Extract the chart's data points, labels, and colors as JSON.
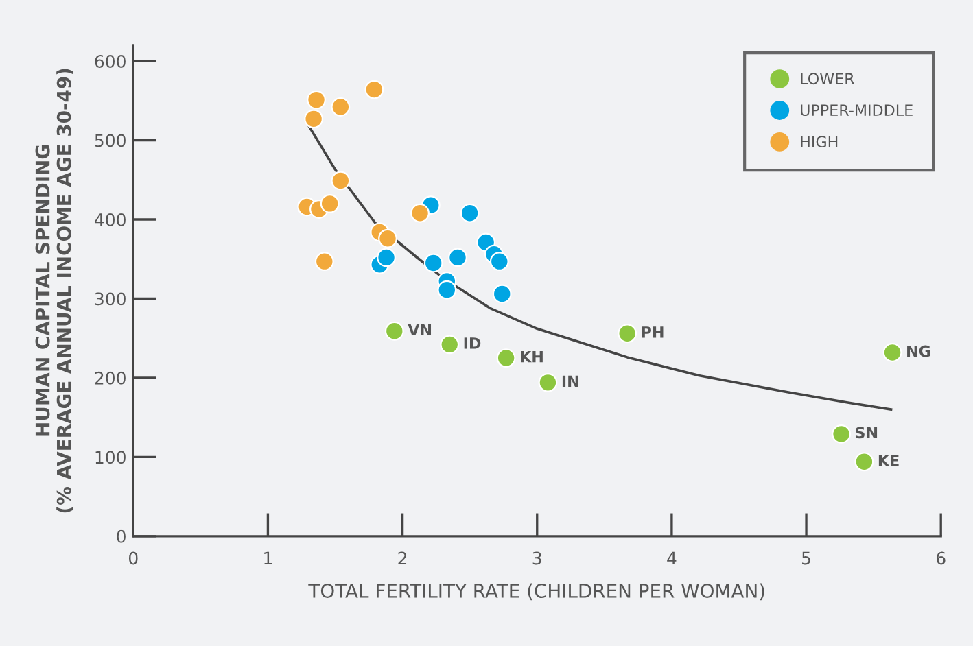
{
  "chart_data": {
    "type": "scatter",
    "xlabel": "TOTAL FERTILITY RATE (CHILDREN PER WOMAN)",
    "ylabel": "HUMAN CAPITAL SPENDING\n(% AVERAGE ANNUAL INCOME AGE 30-49)",
    "xlim": [
      0,
      6
    ],
    "ylim": [
      0,
      620
    ],
    "xticks": [
      0,
      1,
      2,
      3,
      4,
      5,
      6
    ],
    "yticks": [
      0,
      100,
      200,
      300,
      400,
      500,
      600
    ],
    "grid": false,
    "legend": "top right",
    "marker": "circle",
    "series": [
      {
        "name": "LOWER",
        "color": "#8cc63f",
        "x": [
          1.94,
          2.35,
          2.77,
          3.08,
          3.67,
          5.64,
          5.26,
          5.43
        ],
        "values": [
          259,
          242,
          225,
          194,
          256,
          232,
          129,
          94
        ]
      },
      {
        "name": "UPPER-MIDDLE",
        "color": "#00a5e3",
        "x": [
          1.83,
          1.88,
          2.21,
          2.23,
          2.33,
          2.33,
          2.41,
          2.5,
          2.62,
          2.68,
          2.72,
          2.74
        ],
        "values": [
          343,
          352,
          418,
          345,
          322,
          311,
          352,
          408,
          371,
          356,
          347,
          306
        ]
      },
      {
        "name": "HIGH",
        "color": "#f2a93b",
        "x": [
          1.36,
          1.34,
          1.54,
          1.79,
          1.54,
          1.29,
          1.38,
          1.46,
          1.42,
          1.83,
          1.89,
          2.13
        ],
        "values": [
          551,
          527,
          542,
          564,
          449,
          416,
          413,
          420,
          347,
          384,
          376,
          408
        ]
      },
      {
        "type": "line",
        "marker": "none",
        "color": "#444444",
        "x": [
          1.29,
          1.5,
          1.8,
          2.1,
          2.31,
          2.65,
          3.0,
          3.67,
          4.2,
          4.86,
          5.3,
          5.63
        ],
        "values": [
          522,
          463,
          395,
          353,
          325,
          288,
          262,
          226,
          203,
          182,
          169,
          160
        ]
      }
    ],
    "annotations": [
      {
        "text": "VN",
        "x": 1.94,
        "y": 259
      },
      {
        "text": "ID",
        "x": 2.35,
        "y": 242
      },
      {
        "text": "KH",
        "x": 2.77,
        "y": 225
      },
      {
        "text": "IN",
        "x": 3.08,
        "y": 194
      },
      {
        "text": "PH",
        "x": 3.67,
        "y": 256
      },
      {
        "text": "NG",
        "x": 5.64,
        "y": 232
      },
      {
        "text": "SN",
        "x": 5.26,
        "y": 129
      },
      {
        "text": "KE",
        "x": 5.43,
        "y": 94
      }
    ]
  }
}
